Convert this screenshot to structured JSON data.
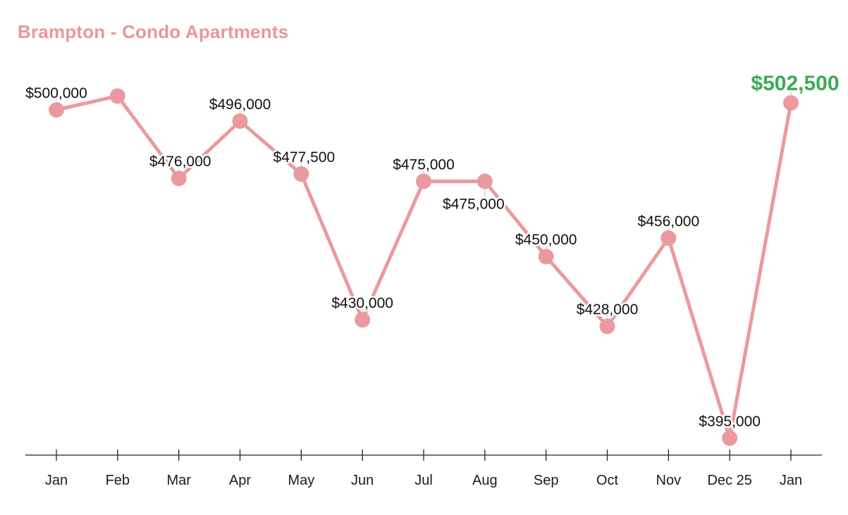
{
  "chart_data": {
    "type": "line",
    "title": "Brampton - Condo Apartments",
    "categories": [
      "Jan",
      "Feb",
      "Mar",
      "Apr",
      "May",
      "Jun",
      "Jul",
      "Aug",
      "Sep",
      "Oct",
      "Nov",
      "Dec 25",
      "Jan"
    ],
    "values": [
      500000,
      505000,
      476000,
      496000,
      477500,
      430000,
      475000,
      475000,
      450000,
      428000,
      456000,
      395000,
      502500
    ],
    "point_labels": [
      "$500,000",
      "",
      "$476,000",
      "$496,000",
      "$477,500",
      "$430,000",
      "$475,000",
      "$475,000",
      "$450,000",
      "$428,000",
      "$456,000",
      "$395,000",
      "$502,500"
    ],
    "label_positions": [
      "above",
      "hidden",
      "above",
      "above",
      "above",
      "above",
      "above",
      "below",
      "above",
      "above",
      "above",
      "above",
      "above"
    ],
    "label_dx": [
      0,
      0,
      2,
      0,
      4,
      0,
      0,
      -16,
      0,
      0,
      0,
      0,
      6
    ],
    "highlight_last_point": true,
    "xlabel": "",
    "ylabel": "",
    "yscale": "log",
    "ylim": [
      383000,
      515000
    ],
    "grid": false,
    "legend": "none"
  },
  "style": {
    "series_color": "#EA9A9E",
    "title_color": "#EC9699",
    "highlight_color": "#3CAB53",
    "label_color": "#111111",
    "month_label_color": "#1C1C1C",
    "axis_color": "#222222",
    "stem_color": "#C9C9C9",
    "background": "#FFFFFF"
  }
}
